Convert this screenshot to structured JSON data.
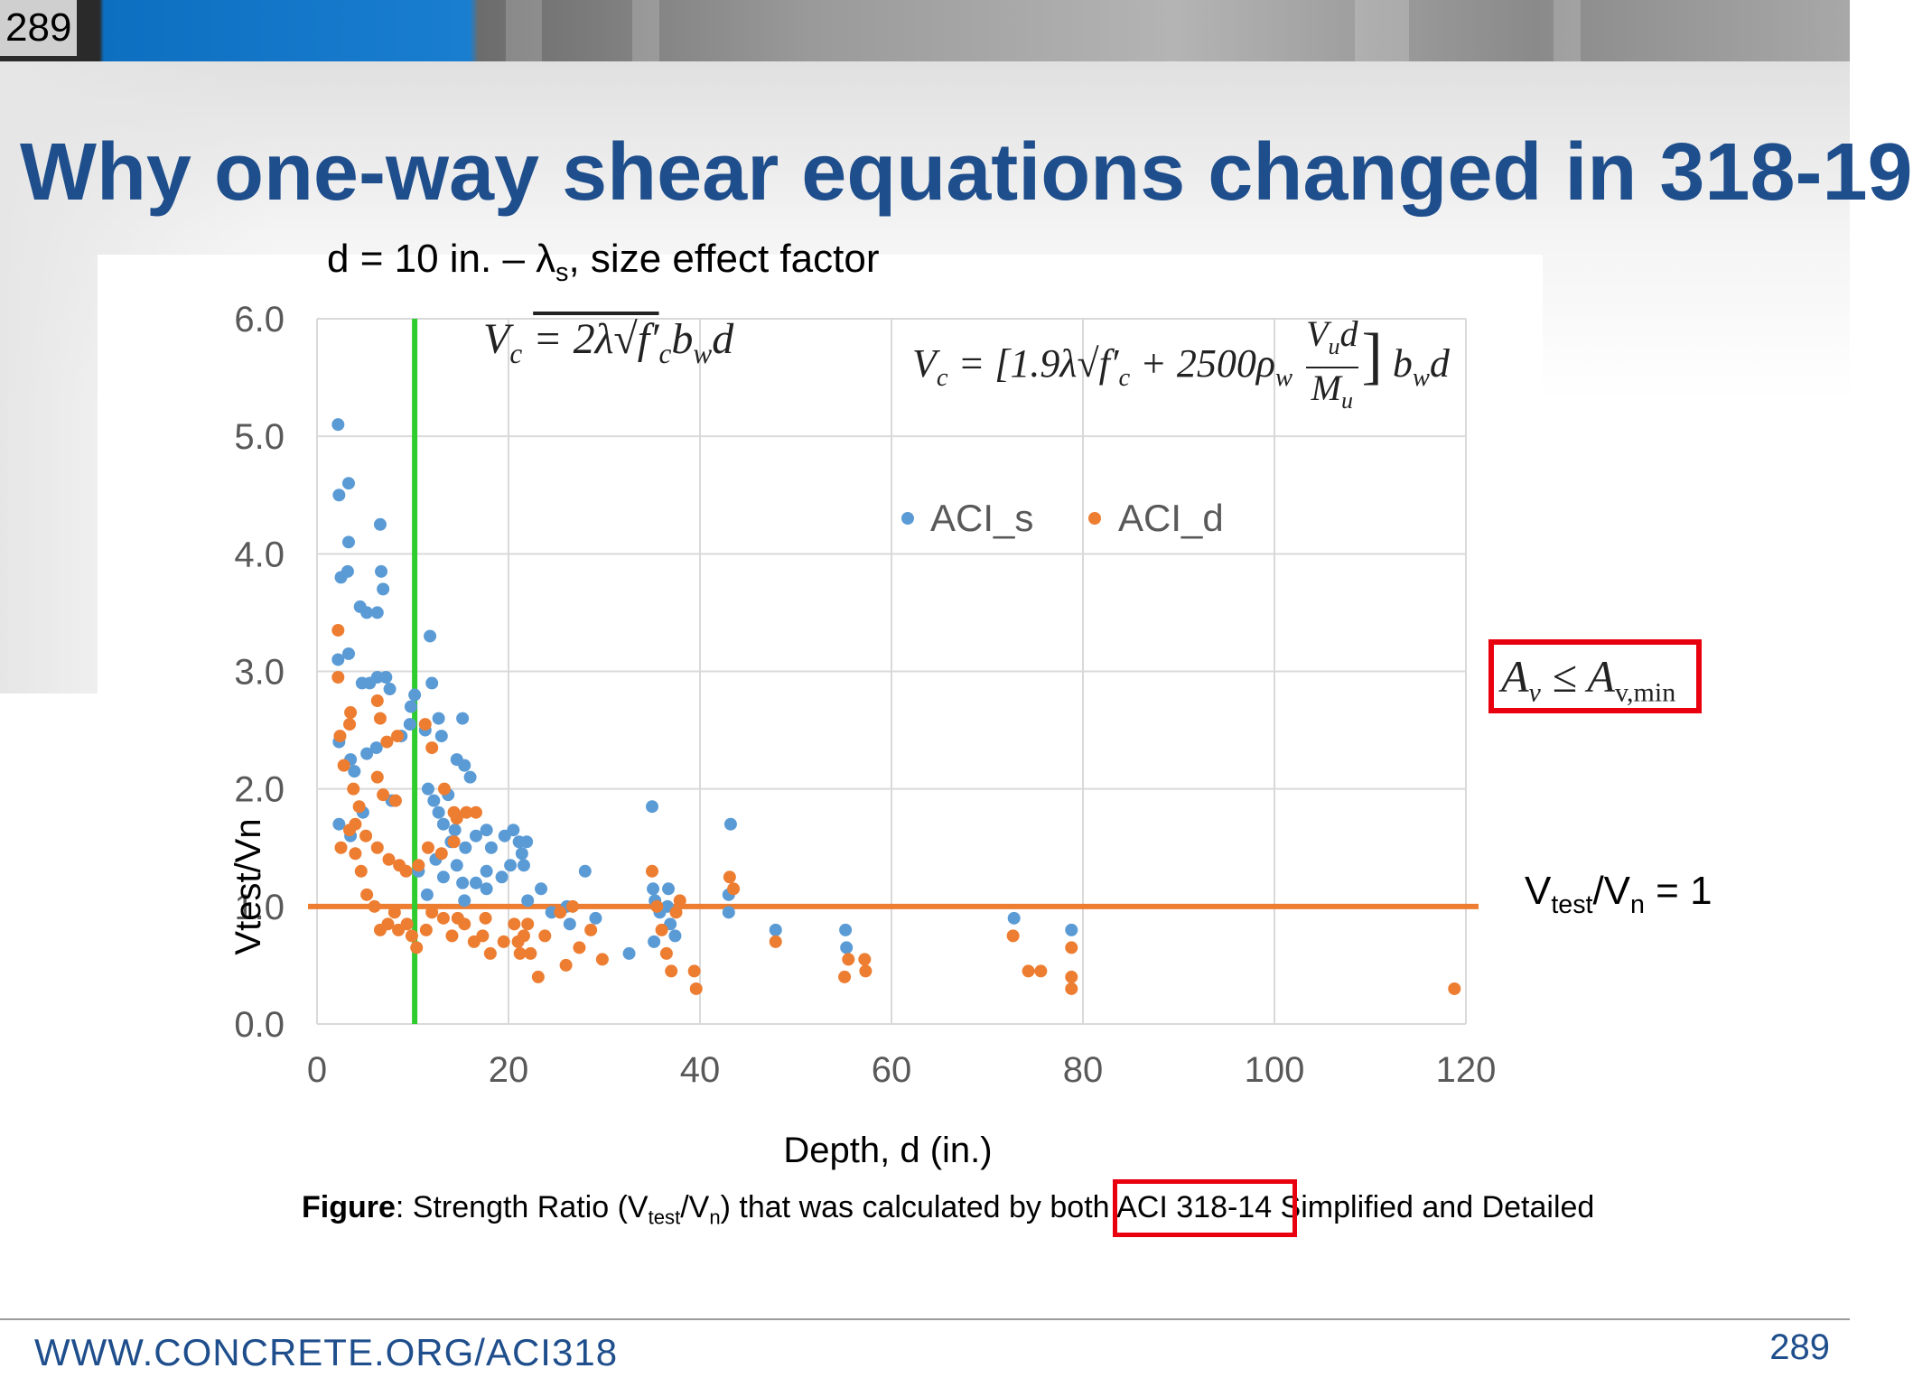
{
  "slide": {
    "top_number": "289",
    "title": "Why one-way shear equations changed in 318-19",
    "footer_url": "WWW.CONCRETE.ORG/ACI318",
    "footer_number": "289"
  },
  "annotations": {
    "subtitle_prefix": "d = 10 in. – λ",
    "subtitle_sub": "s",
    "subtitle_suffix": ", size effect factor",
    "eq1_lhs": "V",
    "eq1_lhs_sub": "c",
    "eq1_rhs": "= 2λ√f′",
    "eq1_rhs_sub": "c",
    "eq1_tail": "b",
    "eq1_tail_sub": "w",
    "eq1_end": "d",
    "eq2_lhs": "V",
    "eq2_lhs_sub": "c",
    "eq2_mid": "= [1.9λ√f′",
    "eq2_mid_sub": "c",
    "eq2_plus": "+ 2500ρ",
    "eq2_rho_sub": "w",
    "eq2_num": "V",
    "eq2_num_sub": "u",
    "eq2_num_d": "d",
    "eq2_den": "M",
    "eq2_den_sub": "u",
    "eq2_close": "]",
    "eq2_tail": "b",
    "eq2_tail_sub": "w",
    "eq2_end": "d",
    "box_av": "A",
    "box_av_sub": "v",
    "box_leq": " ≤ A",
    "box_avmin_sub": "v,min",
    "ratio_v": "V",
    "ratio_test": "test",
    "ratio_slash": "/V",
    "ratio_n": "n",
    "ratio_eq": " = 1"
  },
  "caption": {
    "bold": "Figure",
    "text1": ": Strength Ratio (V",
    "sub1": "test",
    "text2": "/V",
    "sub2": "n",
    "text3": ") that was calculated by both ACI 318-14 Simplified and Detailed"
  },
  "colors": {
    "aci_s": "#5b9bd5",
    "aci_d": "#ed7d31",
    "green_line": "#2ecc2e",
    "title": "#1f4e8c",
    "highlight": "#e8000f"
  },
  "chart_data": {
    "type": "scatter",
    "xlabel": "Depth, d (in.)",
    "ylabel": "Vtest/Vn",
    "xlim": [
      0,
      120
    ],
    "ylim": [
      0,
      6
    ],
    "x_ticks": [
      "0",
      "20",
      "40",
      "60",
      "80",
      "100",
      "120"
    ],
    "y_ticks": [
      "0.0",
      "1.0",
      "2.0",
      "3.0",
      "4.0",
      "5.0",
      "6.0"
    ],
    "grid": true,
    "legend_position": "top-center",
    "reference_lines": [
      {
        "orientation": "horizontal",
        "value": 1.0,
        "color": "#ed7d31"
      },
      {
        "orientation": "vertical",
        "value": 10.2,
        "color": "#2ecc2e"
      }
    ],
    "series": [
      {
        "name": "ACI_s",
        "color": "#5b9bd5",
        "points": [
          [
            2.2,
            5.1
          ],
          [
            2.3,
            4.5
          ],
          [
            3.3,
            4.6
          ],
          [
            3.3,
            4.1
          ],
          [
            2.5,
            3.8
          ],
          [
            3.2,
            3.85
          ],
          [
            4.5,
            3.55
          ],
          [
            6.6,
            4.25
          ],
          [
            6.7,
            3.85
          ],
          [
            6.9,
            3.7
          ],
          [
            5.2,
            3.5
          ],
          [
            6.3,
            3.5
          ],
          [
            2.2,
            3.1
          ],
          [
            3.3,
            3.15
          ],
          [
            4.7,
            2.9
          ],
          [
            5.5,
            2.9
          ],
          [
            6.3,
            2.95
          ],
          [
            7.2,
            2.95
          ],
          [
            7.6,
            2.85
          ],
          [
            9.8,
            2.7
          ],
          [
            10.2,
            2.8
          ],
          [
            11.8,
            3.3
          ],
          [
            12.0,
            2.9
          ],
          [
            12.7,
            2.6
          ],
          [
            13.0,
            2.45
          ],
          [
            14.6,
            2.25
          ],
          [
            15.2,
            2.6
          ],
          [
            15.4,
            2.2
          ],
          [
            16.0,
            2.1
          ],
          [
            11.3,
            2.5
          ],
          [
            2.3,
            2.4
          ],
          [
            3.5,
            2.25
          ],
          [
            3.9,
            2.15
          ],
          [
            5.2,
            2.3
          ],
          [
            6.2,
            2.35
          ],
          [
            8.8,
            2.45
          ],
          [
            11.6,
            2.0
          ],
          [
            13.7,
            1.95
          ],
          [
            9.7,
            2.55
          ],
          [
            2.3,
            1.7
          ],
          [
            3.5,
            1.6
          ],
          [
            4.8,
            1.8
          ],
          [
            7.8,
            1.9
          ],
          [
            12.2,
            1.9
          ],
          [
            12.7,
            1.8
          ],
          [
            13.2,
            1.7
          ],
          [
            14.0,
            1.55
          ],
          [
            14.4,
            1.65
          ],
          [
            15.5,
            1.5
          ],
          [
            16.6,
            1.6
          ],
          [
            17.7,
            1.65
          ],
          [
            18.2,
            1.5
          ],
          [
            19.6,
            1.6
          ],
          [
            20.5,
            1.65
          ],
          [
            21.1,
            1.55
          ],
          [
            21.4,
            1.45
          ],
          [
            21.9,
            1.55
          ],
          [
            21.6,
            1.35
          ],
          [
            20.2,
            1.35
          ],
          [
            19.3,
            1.25
          ],
          [
            17.7,
            1.3
          ],
          [
            17.7,
            1.15
          ],
          [
            16.6,
            1.2
          ],
          [
            15.4,
            1.05
          ],
          [
            15.2,
            1.2
          ],
          [
            14.6,
            1.35
          ],
          [
            13.2,
            1.25
          ],
          [
            12.4,
            1.4
          ],
          [
            11.5,
            1.1
          ],
          [
            10.6,
            1.3
          ],
          [
            22.0,
            1.05
          ],
          [
            23.4,
            1.15
          ],
          [
            24.5,
            0.95
          ],
          [
            26.1,
            1.0
          ],
          [
            28.0,
            1.3
          ],
          [
            29.1,
            0.9
          ],
          [
            26.4,
            0.85
          ],
          [
            32.6,
            0.6
          ],
          [
            35.0,
            1.85
          ],
          [
            35.1,
            1.15
          ],
          [
            35.3,
            1.05
          ],
          [
            35.8,
            0.95
          ],
          [
            36.7,
            1.15
          ],
          [
            36.6,
            1.0
          ],
          [
            36.9,
            0.85
          ],
          [
            37.4,
            0.75
          ],
          [
            35.2,
            0.7
          ],
          [
            43.2,
            1.7
          ],
          [
            43.0,
            1.1
          ],
          [
            43.0,
            0.95
          ],
          [
            47.9,
            0.8
          ],
          [
            55.2,
            0.8
          ],
          [
            55.3,
            0.65
          ],
          [
            72.8,
            0.9
          ],
          [
            78.8,
            0.8
          ]
        ]
      },
      {
        "name": "ACI_d",
        "color": "#ed7d31",
        "points": [
          [
            2.2,
            3.35
          ],
          [
            2.2,
            2.95
          ],
          [
            3.5,
            2.65
          ],
          [
            3.4,
            2.55
          ],
          [
            2.4,
            2.45
          ],
          [
            6.3,
            2.75
          ],
          [
            6.6,
            2.6
          ],
          [
            7.3,
            2.4
          ],
          [
            8.4,
            2.45
          ],
          [
            11.3,
            2.55
          ],
          [
            12.0,
            2.35
          ],
          [
            13.3,
            2.0
          ],
          [
            14.3,
            1.8
          ],
          [
            14.6,
            1.75
          ],
          [
            15.6,
            1.8
          ],
          [
            16.6,
            1.8
          ],
          [
            2.8,
            2.2
          ],
          [
            3.8,
            2.0
          ],
          [
            4.4,
            1.85
          ],
          [
            6.3,
            2.1
          ],
          [
            6.9,
            1.95
          ],
          [
            8.2,
            1.9
          ],
          [
            2.5,
            1.5
          ],
          [
            3.4,
            1.65
          ],
          [
            4.0,
            1.45
          ],
          [
            4.6,
            1.3
          ],
          [
            5.2,
            1.1
          ],
          [
            6.0,
            1.0
          ],
          [
            6.6,
            0.8
          ],
          [
            7.4,
            0.85
          ],
          [
            8.1,
            0.95
          ],
          [
            8.5,
            0.8
          ],
          [
            9.4,
            0.85
          ],
          [
            9.9,
            0.75
          ],
          [
            10.4,
            0.65
          ],
          [
            11.4,
            0.8
          ],
          [
            12.0,
            0.95
          ],
          [
            13.2,
            0.9
          ],
          [
            14.1,
            0.75
          ],
          [
            14.7,
            0.9
          ],
          [
            15.4,
            0.85
          ],
          [
            16.4,
            0.7
          ],
          [
            17.3,
            0.75
          ],
          [
            17.6,
            0.9
          ],
          [
            18.1,
            0.6
          ],
          [
            19.5,
            0.7
          ],
          [
            20.6,
            0.85
          ],
          [
            21.0,
            0.7
          ],
          [
            21.2,
            0.6
          ],
          [
            21.6,
            0.75
          ],
          [
            14.3,
            1.55
          ],
          [
            13.0,
            1.45
          ],
          [
            11.6,
            1.5
          ],
          [
            10.6,
            1.35
          ],
          [
            9.3,
            1.3
          ],
          [
            8.6,
            1.35
          ],
          [
            7.5,
            1.4
          ],
          [
            6.3,
            1.5
          ],
          [
            5.1,
            1.6
          ],
          [
            4.0,
            1.7
          ],
          [
            22.0,
            0.85
          ],
          [
            23.8,
            0.75
          ],
          [
            25.4,
            0.95
          ],
          [
            26.7,
            1.0
          ],
          [
            27.4,
            0.65
          ],
          [
            28.6,
            0.8
          ],
          [
            29.8,
            0.55
          ],
          [
            22.3,
            0.6
          ],
          [
            23.1,
            0.4
          ],
          [
            26.0,
            0.5
          ],
          [
            35.0,
            1.3
          ],
          [
            35.5,
            1.0
          ],
          [
            36.0,
            0.8
          ],
          [
            36.5,
            0.6
          ],
          [
            37.0,
            0.45
          ],
          [
            37.5,
            0.95
          ],
          [
            37.9,
            1.05
          ],
          [
            39.4,
            0.45
          ],
          [
            39.6,
            0.3
          ],
          [
            43.1,
            1.25
          ],
          [
            43.5,
            1.15
          ],
          [
            47.9,
            0.7
          ],
          [
            55.1,
            0.4
          ],
          [
            55.5,
            0.55
          ],
          [
            57.2,
            0.55
          ],
          [
            57.3,
            0.45
          ],
          [
            72.7,
            0.75
          ],
          [
            74.3,
            0.45
          ],
          [
            75.6,
            0.45
          ],
          [
            78.8,
            0.65
          ],
          [
            78.8,
            0.4
          ],
          [
            78.8,
            0.3
          ],
          [
            118.8,
            0.3
          ]
        ]
      }
    ]
  }
}
